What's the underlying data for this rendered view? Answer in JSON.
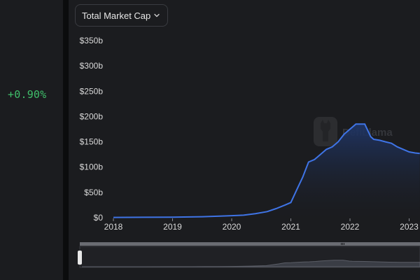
{
  "sidebar": {
    "change_value": "+0.90%"
  },
  "metric_select": {
    "label": "Total Market Cap",
    "icon": "chevron-down-icon"
  },
  "watermark": {
    "text": "DefiLlama"
  },
  "colors": {
    "line": "#3f74e6",
    "area_top": "#1f3566",
    "positive": "#3fbf6a",
    "background": "#1b1c1f"
  },
  "chart_data": {
    "type": "area",
    "title": "",
    "xlabel": "",
    "ylabel": "",
    "y_ticks": [
      "$0",
      "$50b",
      "$100b",
      "$150b",
      "$200b",
      "$250b",
      "$300b",
      "$350b"
    ],
    "x_ticks": [
      "2018",
      "2019",
      "2020",
      "2021",
      "2022",
      "2023"
    ],
    "ylim": [
      0,
      350
    ],
    "xlim": [
      2017.93,
      2023.18
    ],
    "grid": false,
    "series": [
      {
        "values_unit": "billion USD",
        "x": [
          2018.0,
          2018.5,
          2019.0,
          2019.5,
          2019.8,
          2020.0,
          2020.2,
          2020.4,
          2020.6,
          2020.75,
          2020.9,
          2021.0,
          2021.1,
          2021.2,
          2021.3,
          2021.4,
          2021.5,
          2021.6,
          2021.7,
          2021.8,
          2021.9,
          2022.0,
          2022.1,
          2022.25,
          2022.35,
          2022.4,
          2022.5,
          2022.6,
          2022.7,
          2022.8,
          2022.9,
          2023.0,
          2023.1,
          2023.18
        ],
        "y": [
          0.5,
          0.8,
          1,
          2,
          3,
          4,
          5,
          8,
          12,
          18,
          25,
          30,
          55,
          80,
          110,
          115,
          125,
          135,
          140,
          150,
          165,
          175,
          185,
          185,
          160,
          155,
          153,
          150,
          147,
          140,
          135,
          130,
          128,
          127
        ]
      }
    ]
  }
}
